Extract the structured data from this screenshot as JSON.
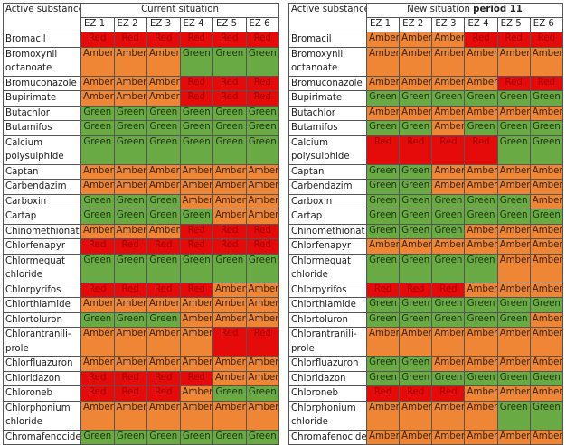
{
  "header": {
    "substance_label": "Active substance",
    "zones": [
      "EZ 1",
      "EZ 2",
      "EZ 3",
      "EZ 4",
      "EZ 5",
      "EZ 6"
    ]
  },
  "colors": {
    "Red": "#e50b0b",
    "Amber": "#ee8636",
    "Green": "#6aaa45"
  },
  "tables": [
    {
      "title": "Current situation",
      "title_bold": "",
      "rows": [
        {
          "name": "Bromacil",
          "values": [
            "Red",
            "Red",
            "Red",
            "Red",
            "Red",
            "Red"
          ]
        },
        {
          "name": "Bromoxynil octanoate",
          "values": [
            "Amber",
            "Amber",
            "Amber",
            "Green",
            "Green",
            "Green"
          ]
        },
        {
          "name": "Bromuconazole",
          "values": [
            "Amber",
            "Amber",
            "Amber",
            "Red",
            "Red",
            "Red"
          ]
        },
        {
          "name": "Bupirimate",
          "values": [
            "Amber",
            "Amber",
            "Amber",
            "Red",
            "Red",
            "Red"
          ]
        },
        {
          "name": "Butachlor",
          "values": [
            "Green",
            "Green",
            "Green",
            "Green",
            "Green",
            "Green"
          ]
        },
        {
          "name": "Butamifos",
          "values": [
            "Green",
            "Green",
            "Green",
            "Green",
            "Green",
            "Green"
          ]
        },
        {
          "name": "Calcium polysulphide",
          "values": [
            "Green",
            "Green",
            "Green",
            "Green",
            "Green",
            "Green"
          ]
        },
        {
          "name": "Captan",
          "values": [
            "Amber",
            "Amber",
            "Amber",
            "Amber",
            "Amber",
            "Amber"
          ]
        },
        {
          "name": "Carbendazim",
          "values": [
            "Amber",
            "Amber",
            "Amber",
            "Amber",
            "Amber",
            "Amber"
          ]
        },
        {
          "name": "Carboxin",
          "values": [
            "Green",
            "Green",
            "Green",
            "Amber",
            "Amber",
            "Amber"
          ]
        },
        {
          "name": "Cartap",
          "values": [
            "Green",
            "Green",
            "Green",
            "Green",
            "Amber",
            "Amber"
          ]
        },
        {
          "name": "Chinomethionat",
          "values": [
            "Amber",
            "Amber",
            "Amber",
            "Red",
            "Red",
            "Red"
          ]
        },
        {
          "name": "Chlorfenapyr",
          "values": [
            "Red",
            "Red",
            "Red",
            "Red",
            "Red",
            "Red"
          ]
        },
        {
          "name": "Chlormequat chloride",
          "values": [
            "Green",
            "Green",
            "Green",
            "Green",
            "Green",
            "Green"
          ]
        },
        {
          "name": "Chlorpyrifos",
          "values": [
            "Red",
            "Red",
            "Red",
            "Red",
            "Amber",
            "Amber"
          ]
        },
        {
          "name": "Chlorthiamide",
          "values": [
            "Amber",
            "Amber",
            "Amber",
            "Amber",
            "Amber",
            "Amber"
          ]
        },
        {
          "name": "Chlortoluron",
          "values": [
            "Green",
            "Green",
            "Green",
            "Amber",
            "Amber",
            "Amber"
          ]
        },
        {
          "name": "Chlorantranili-prole",
          "values": [
            "Amber",
            "Amber",
            "Amber",
            "Amber",
            "Red",
            "Red"
          ]
        },
        {
          "name": "Chlorfluazuron",
          "values": [
            "Amber",
            "Amber",
            "Amber",
            "Amber",
            "Amber",
            "Amber"
          ]
        },
        {
          "name": "Chloridazon",
          "values": [
            "Red",
            "Red",
            "Red",
            "Red",
            "Amber",
            "Amber"
          ]
        },
        {
          "name": "Chloroneb",
          "values": [
            "Red",
            "Red",
            "Red",
            "Amber",
            "Green",
            "Green"
          ]
        },
        {
          "name": "Chlorphonium chloride",
          "values": [
            "Amber",
            "Amber",
            "Amber",
            "Amber",
            "Amber",
            "Amber"
          ]
        },
        {
          "name": "Chromafenocide",
          "values": [
            "Green",
            "Green",
            "Green",
            "Green",
            "Green",
            "Green"
          ]
        }
      ]
    },
    {
      "title": "New situation ",
      "title_bold": "period 11",
      "rows": [
        {
          "name": "Bromacil",
          "values": [
            "Amber",
            "Amber",
            "Amber",
            "Red",
            "Red",
            "Red"
          ]
        },
        {
          "name": "Bromoxynil octanoate",
          "values": [
            "Amber",
            "Amber",
            "Amber",
            "Amber",
            "Amber",
            "Amber"
          ]
        },
        {
          "name": "Bromuconazole",
          "values": [
            "Amber",
            "Amber",
            "Amber",
            "Amber",
            "Red",
            "Red"
          ]
        },
        {
          "name": "Bupirimate",
          "values": [
            "Green",
            "Green",
            "Green",
            "Green",
            "Green",
            "Green"
          ]
        },
        {
          "name": "Butachlor",
          "values": [
            "Amber",
            "Amber",
            "Amber",
            "Amber",
            "Amber",
            "Amber"
          ]
        },
        {
          "name": "Butamifos",
          "values": [
            "Green",
            "Green",
            "Amber",
            "Green",
            "Green",
            "Green"
          ]
        },
        {
          "name": "Calcium polysulphide",
          "values": [
            "Red",
            "Red",
            "Red",
            "Red",
            "Green",
            "Green"
          ]
        },
        {
          "name": "Captan",
          "values": [
            "Green",
            "Green",
            "Amber",
            "Amber",
            "Amber",
            "Amber"
          ]
        },
        {
          "name": "Carbendazim",
          "values": [
            "Green",
            "Green",
            "Amber",
            "Amber",
            "Amber",
            "Amber"
          ]
        },
        {
          "name": "Carboxin",
          "values": [
            "Green",
            "Green",
            "Green",
            "Green",
            "Green",
            "Amber"
          ]
        },
        {
          "name": "Cartap",
          "values": [
            "Green",
            "Green",
            "Green",
            "Green",
            "Green",
            "Green"
          ]
        },
        {
          "name": "Chinomethionat",
          "values": [
            "Green",
            "Green",
            "Green",
            "Amber",
            "Amber",
            "Amber"
          ]
        },
        {
          "name": "Chlorfenapyr",
          "values": [
            "Amber",
            "Amber",
            "Amber",
            "Amber",
            "Amber",
            "Amber"
          ]
        },
        {
          "name": "Chlormequat chloride",
          "values": [
            "Green",
            "Green",
            "Green",
            "Green",
            "Amber",
            "Amber"
          ]
        },
        {
          "name": "Chlorpyrifos",
          "values": [
            "Red",
            "Red",
            "Red",
            "Amber",
            "Amber",
            "Amber"
          ]
        },
        {
          "name": "Chlorthiamide",
          "values": [
            "Green",
            "Green",
            "Green",
            "Green",
            "Green",
            "Green"
          ]
        },
        {
          "name": "Chlortoluron",
          "values": [
            "Green",
            "Green",
            "Green",
            "Green",
            "Green",
            "Amber"
          ]
        },
        {
          "name": "Chlorantranili-prole",
          "values": [
            "Amber",
            "Amber",
            "Amber",
            "Amber",
            "Amber",
            "Amber"
          ]
        },
        {
          "name": "Chlorfluazuron",
          "values": [
            "Green",
            "Green",
            "Amber",
            "Amber",
            "Amber",
            "Amber"
          ]
        },
        {
          "name": "Chloridazon",
          "values": [
            "Green",
            "Green",
            "Green",
            "Green",
            "Green",
            "Green"
          ]
        },
        {
          "name": "Chloroneb",
          "values": [
            "Red",
            "Red",
            "Red",
            "Amber",
            "Amber",
            "Amber"
          ]
        },
        {
          "name": "Chlorphonium chloride",
          "values": [
            "Amber",
            "Amber",
            "Amber",
            "Amber",
            "Green",
            "Green"
          ]
        },
        {
          "name": "Chromafenocide",
          "values": [
            "Amber",
            "Amber",
            "Amber",
            "Amber",
            "Amber",
            "Amber"
          ]
        }
      ]
    }
  ]
}
